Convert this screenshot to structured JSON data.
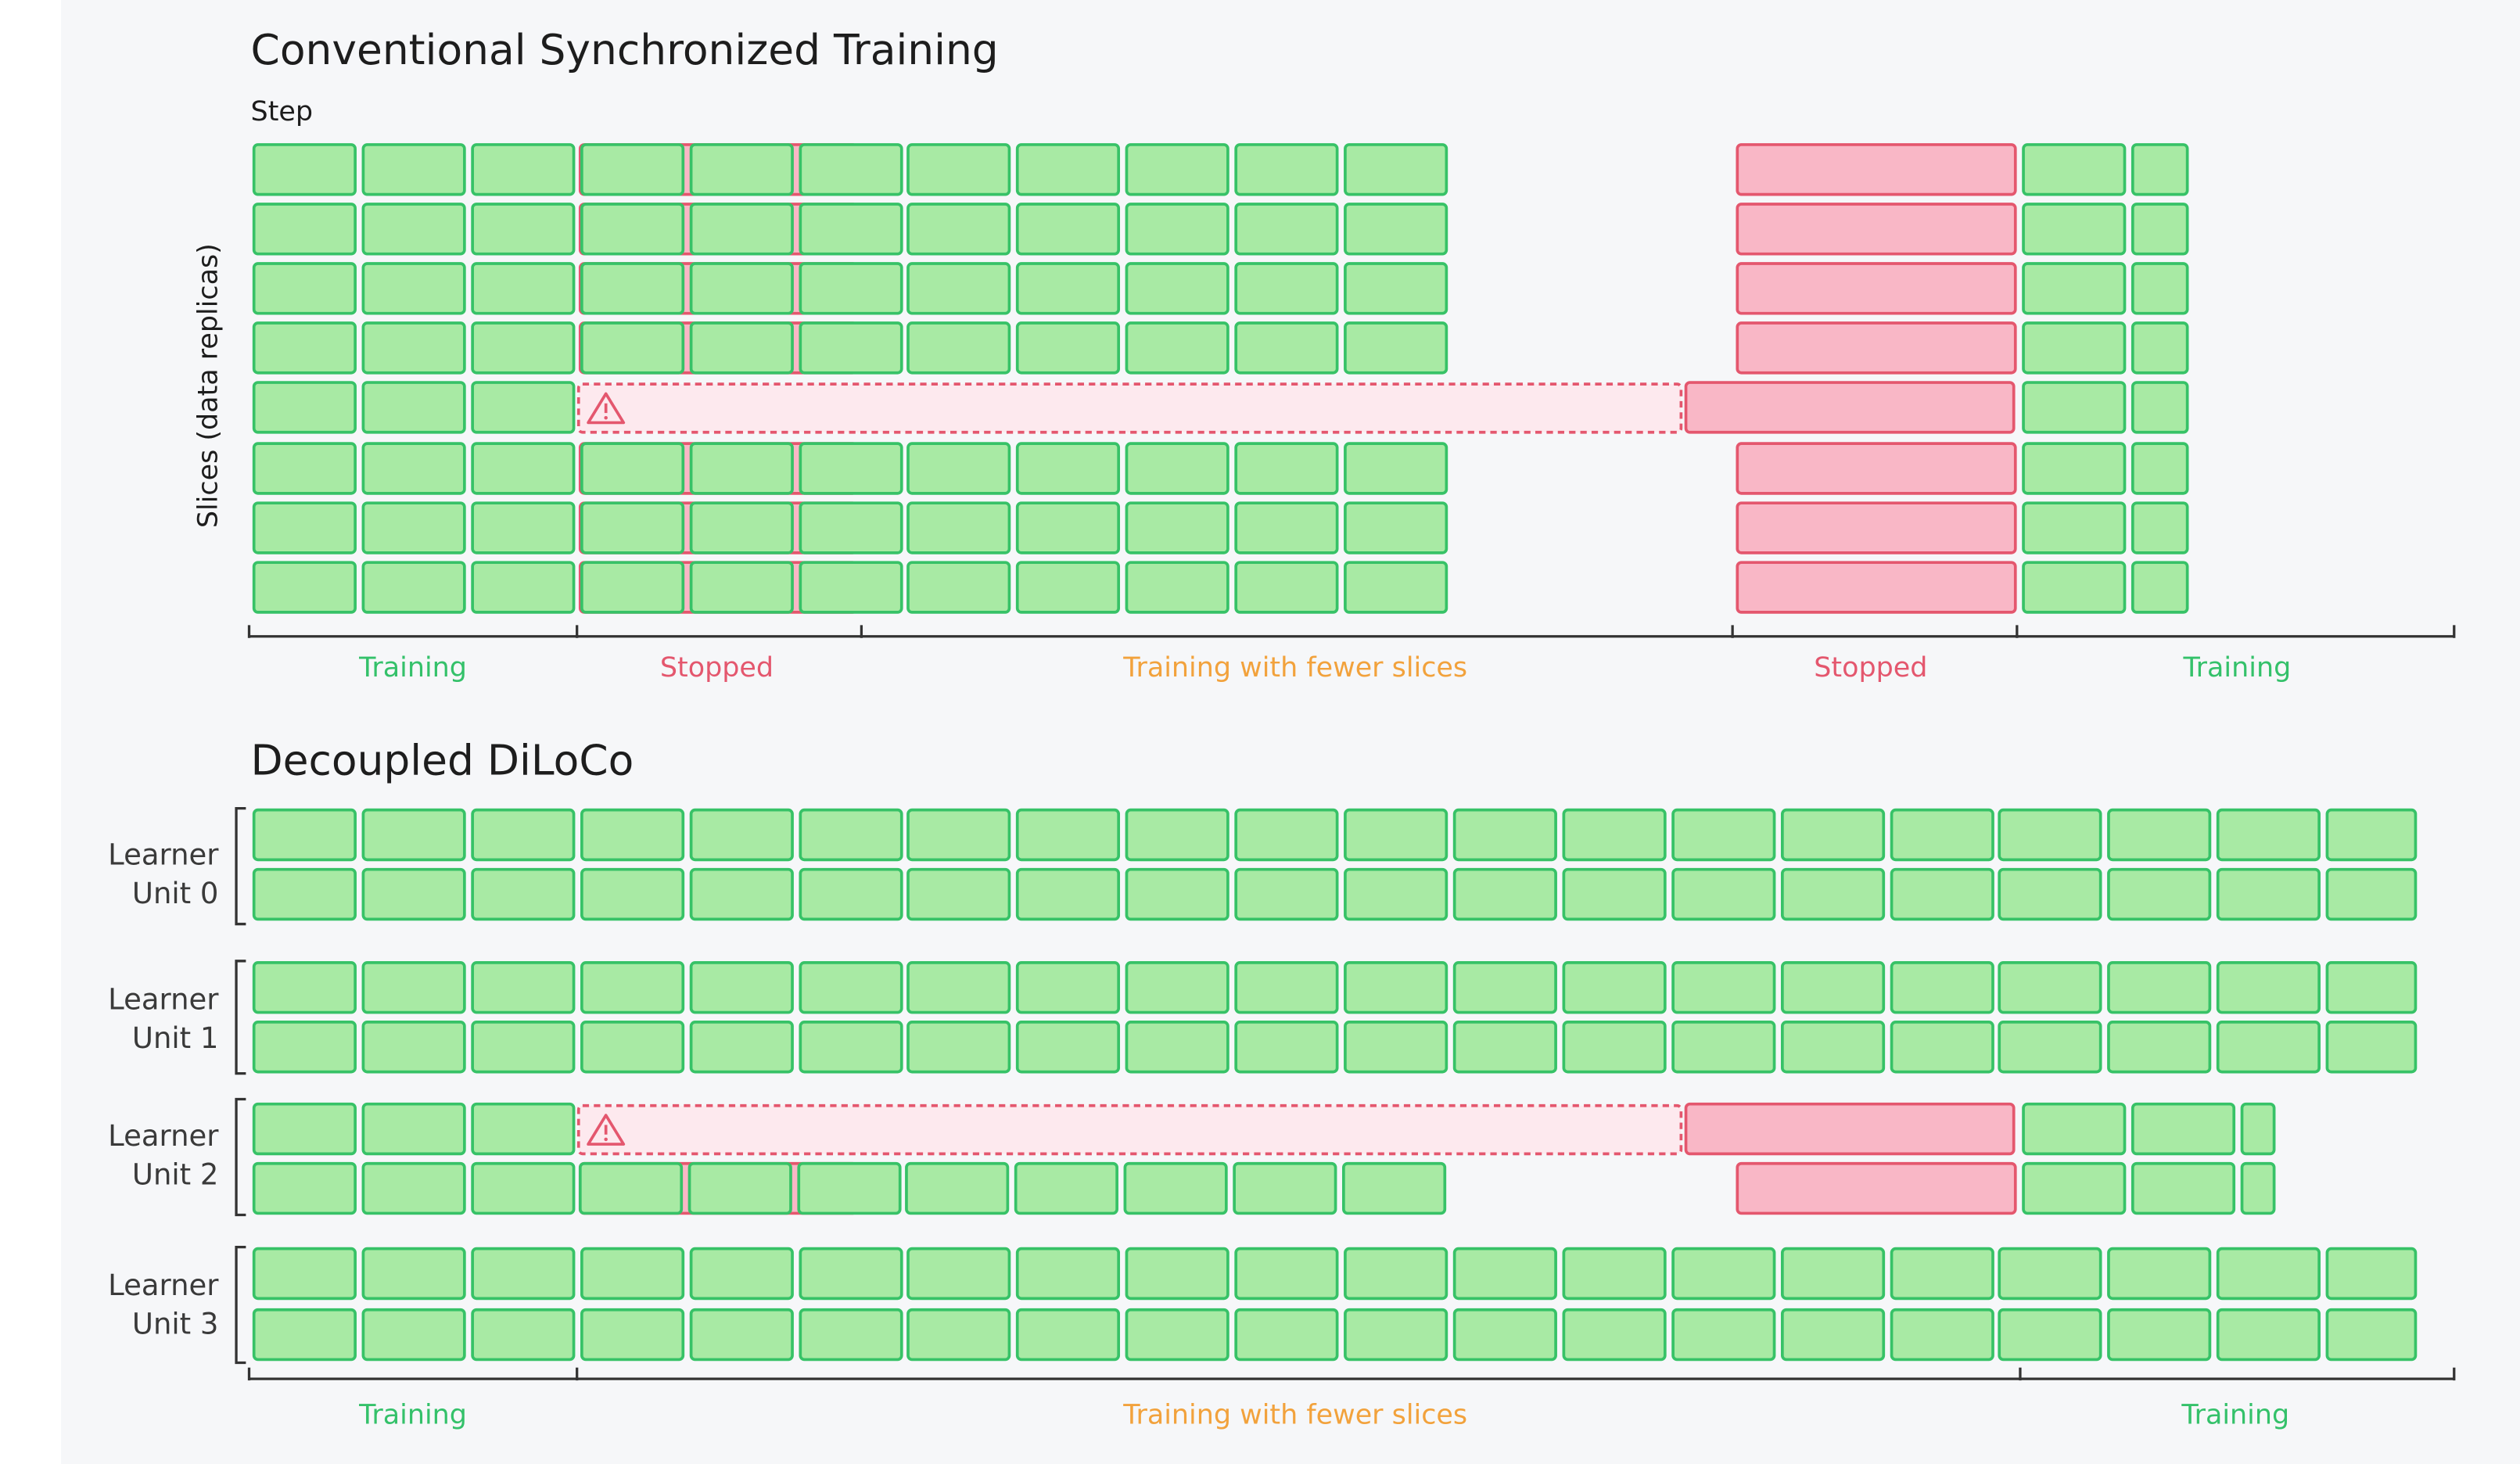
{
  "colors": {
    "training_fill": "#a8eaa4",
    "training_stroke": "#37c267",
    "stopped_fill": "#f9b7c6",
    "stopped_stroke": "#e4576e",
    "failed_fill": "#fde9ee",
    "failed_stroke": "#e4576e",
    "label_training": "#34c16a",
    "label_stopped": "#e4576e",
    "label_fewer": "#f2a23c",
    "axis": "#333333"
  },
  "top": {
    "title": "Conventional Synchronized Training",
    "step_label": "Step",
    "y_axis_label": "Slices (data replicas)",
    "phases": {
      "training_start": "Training",
      "stopped_1": "Stopped",
      "fewer": "Training with fewer slices",
      "stopped_2": "Stopped",
      "training_end": "Training"
    }
  },
  "bottom": {
    "title": "Decoupled DiLoCo",
    "units": [
      {
        "line1": "Learner",
        "line2": "Unit 0"
      },
      {
        "line1": "Learner",
        "line2": "Unit 1"
      },
      {
        "line1": "Learner",
        "line2": "Unit 2"
      },
      {
        "line1": "Learner",
        "line2": "Unit 3"
      }
    ],
    "phases": {
      "training_start": "Training",
      "fewer": "Training with fewer slices",
      "training_end": "Training"
    }
  },
  "icons": {
    "failure": "warning-triangle-icon"
  }
}
